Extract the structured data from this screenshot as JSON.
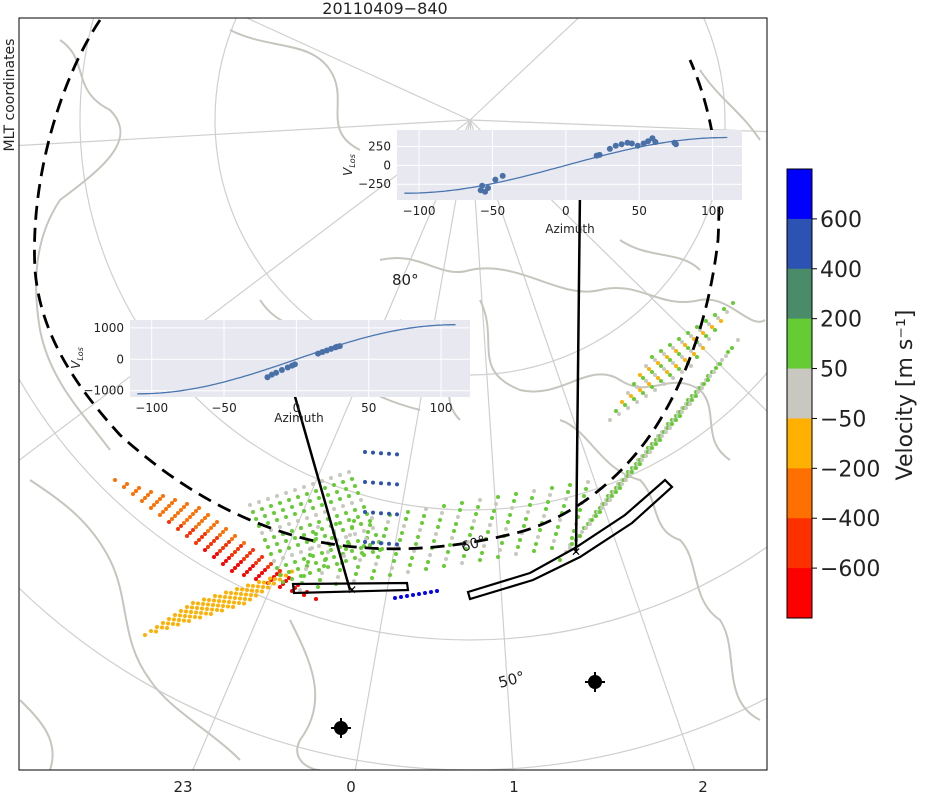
{
  "title": "20110409−840",
  "side_label": "MLT coordinates",
  "map": {
    "x_ticks": [
      "23",
      "0",
      "1",
      "2"
    ],
    "lat_labels": [
      "80°",
      "60°",
      "50°"
    ],
    "colors": {
      "coast": "#c8c8c0",
      "grid": "#c8c8c8",
      "oval": "#000000"
    }
  },
  "colorbar": {
    "label": "Velocity  [m s⁻¹]",
    "ticks": [
      "600",
      "400",
      "200",
      "50",
      "−50",
      "−200",
      "−400",
      "−600"
    ],
    "colors": [
      "#0000ff",
      "#2c52b4",
      "#4a8c6a",
      "#66cc33",
      "#c8c8c0",
      "#ffb000",
      "#ff7000",
      "#ff3000",
      "#ff0000"
    ]
  },
  "chart_data": [
    {
      "type": "scatter",
      "xlabel": "Azimuth",
      "ylabel": "V_Los",
      "xlim": [
        -115,
        120
      ],
      "ylim": [
        -460,
        470
      ],
      "x_ticks": [
        "−100",
        "−50",
        "0",
        "50",
        "100"
      ],
      "y_ticks": [
        "250",
        "0",
        "−250"
      ],
      "y_tick_values": [
        250,
        0,
        -250
      ],
      "x_tick_values": [
        -100,
        -50,
        0,
        50,
        100
      ],
      "fit_amplitude": 370,
      "points": [
        [
          -58,
          -330
        ],
        [
          -57,
          -270
        ],
        [
          -55,
          -350
        ],
        [
          -53,
          -300
        ],
        [
          -48,
          -190
        ],
        [
          -43,
          -140
        ],
        [
          21,
          130
        ],
        [
          23,
          140
        ],
        [
          30,
          220
        ],
        [
          34,
          260
        ],
        [
          38,
          280
        ],
        [
          42,
          300
        ],
        [
          45,
          290
        ],
        [
          49,
          260
        ],
        [
          53,
          290
        ],
        [
          56,
          320
        ],
        [
          59,
          360
        ],
        [
          61,
          310
        ],
        [
          74,
          300
        ],
        [
          75,
          280
        ]
      ]
    },
    {
      "type": "scatter",
      "xlabel": "Azimuth",
      "ylabel": "V_Los",
      "xlim": [
        -115,
        120
      ],
      "ylim": [
        -1200,
        1250
      ],
      "x_ticks": [
        "−100",
        "−50",
        "0",
        "50",
        "100"
      ],
      "y_ticks": [
        "1000",
        "0",
        "−1000"
      ],
      "y_tick_values": [
        1000,
        0,
        -1000
      ],
      "x_tick_values": [
        -100,
        -50,
        0,
        50,
        100
      ],
      "fit_amplitude": 1100,
      "points": [
        [
          -20,
          -570
        ],
        [
          -17,
          -490
        ],
        [
          -14,
          -430
        ],
        [
          -10,
          -340
        ],
        [
          -6,
          -260
        ],
        [
          -3,
          -200
        ],
        [
          -1,
          -160
        ],
        [
          15,
          180
        ],
        [
          18,
          230
        ],
        [
          21,
          280
        ],
        [
          24,
          330
        ],
        [
          27,
          380
        ],
        [
          30,
          420
        ],
        [
          28,
          400
        ]
      ]
    }
  ]
}
